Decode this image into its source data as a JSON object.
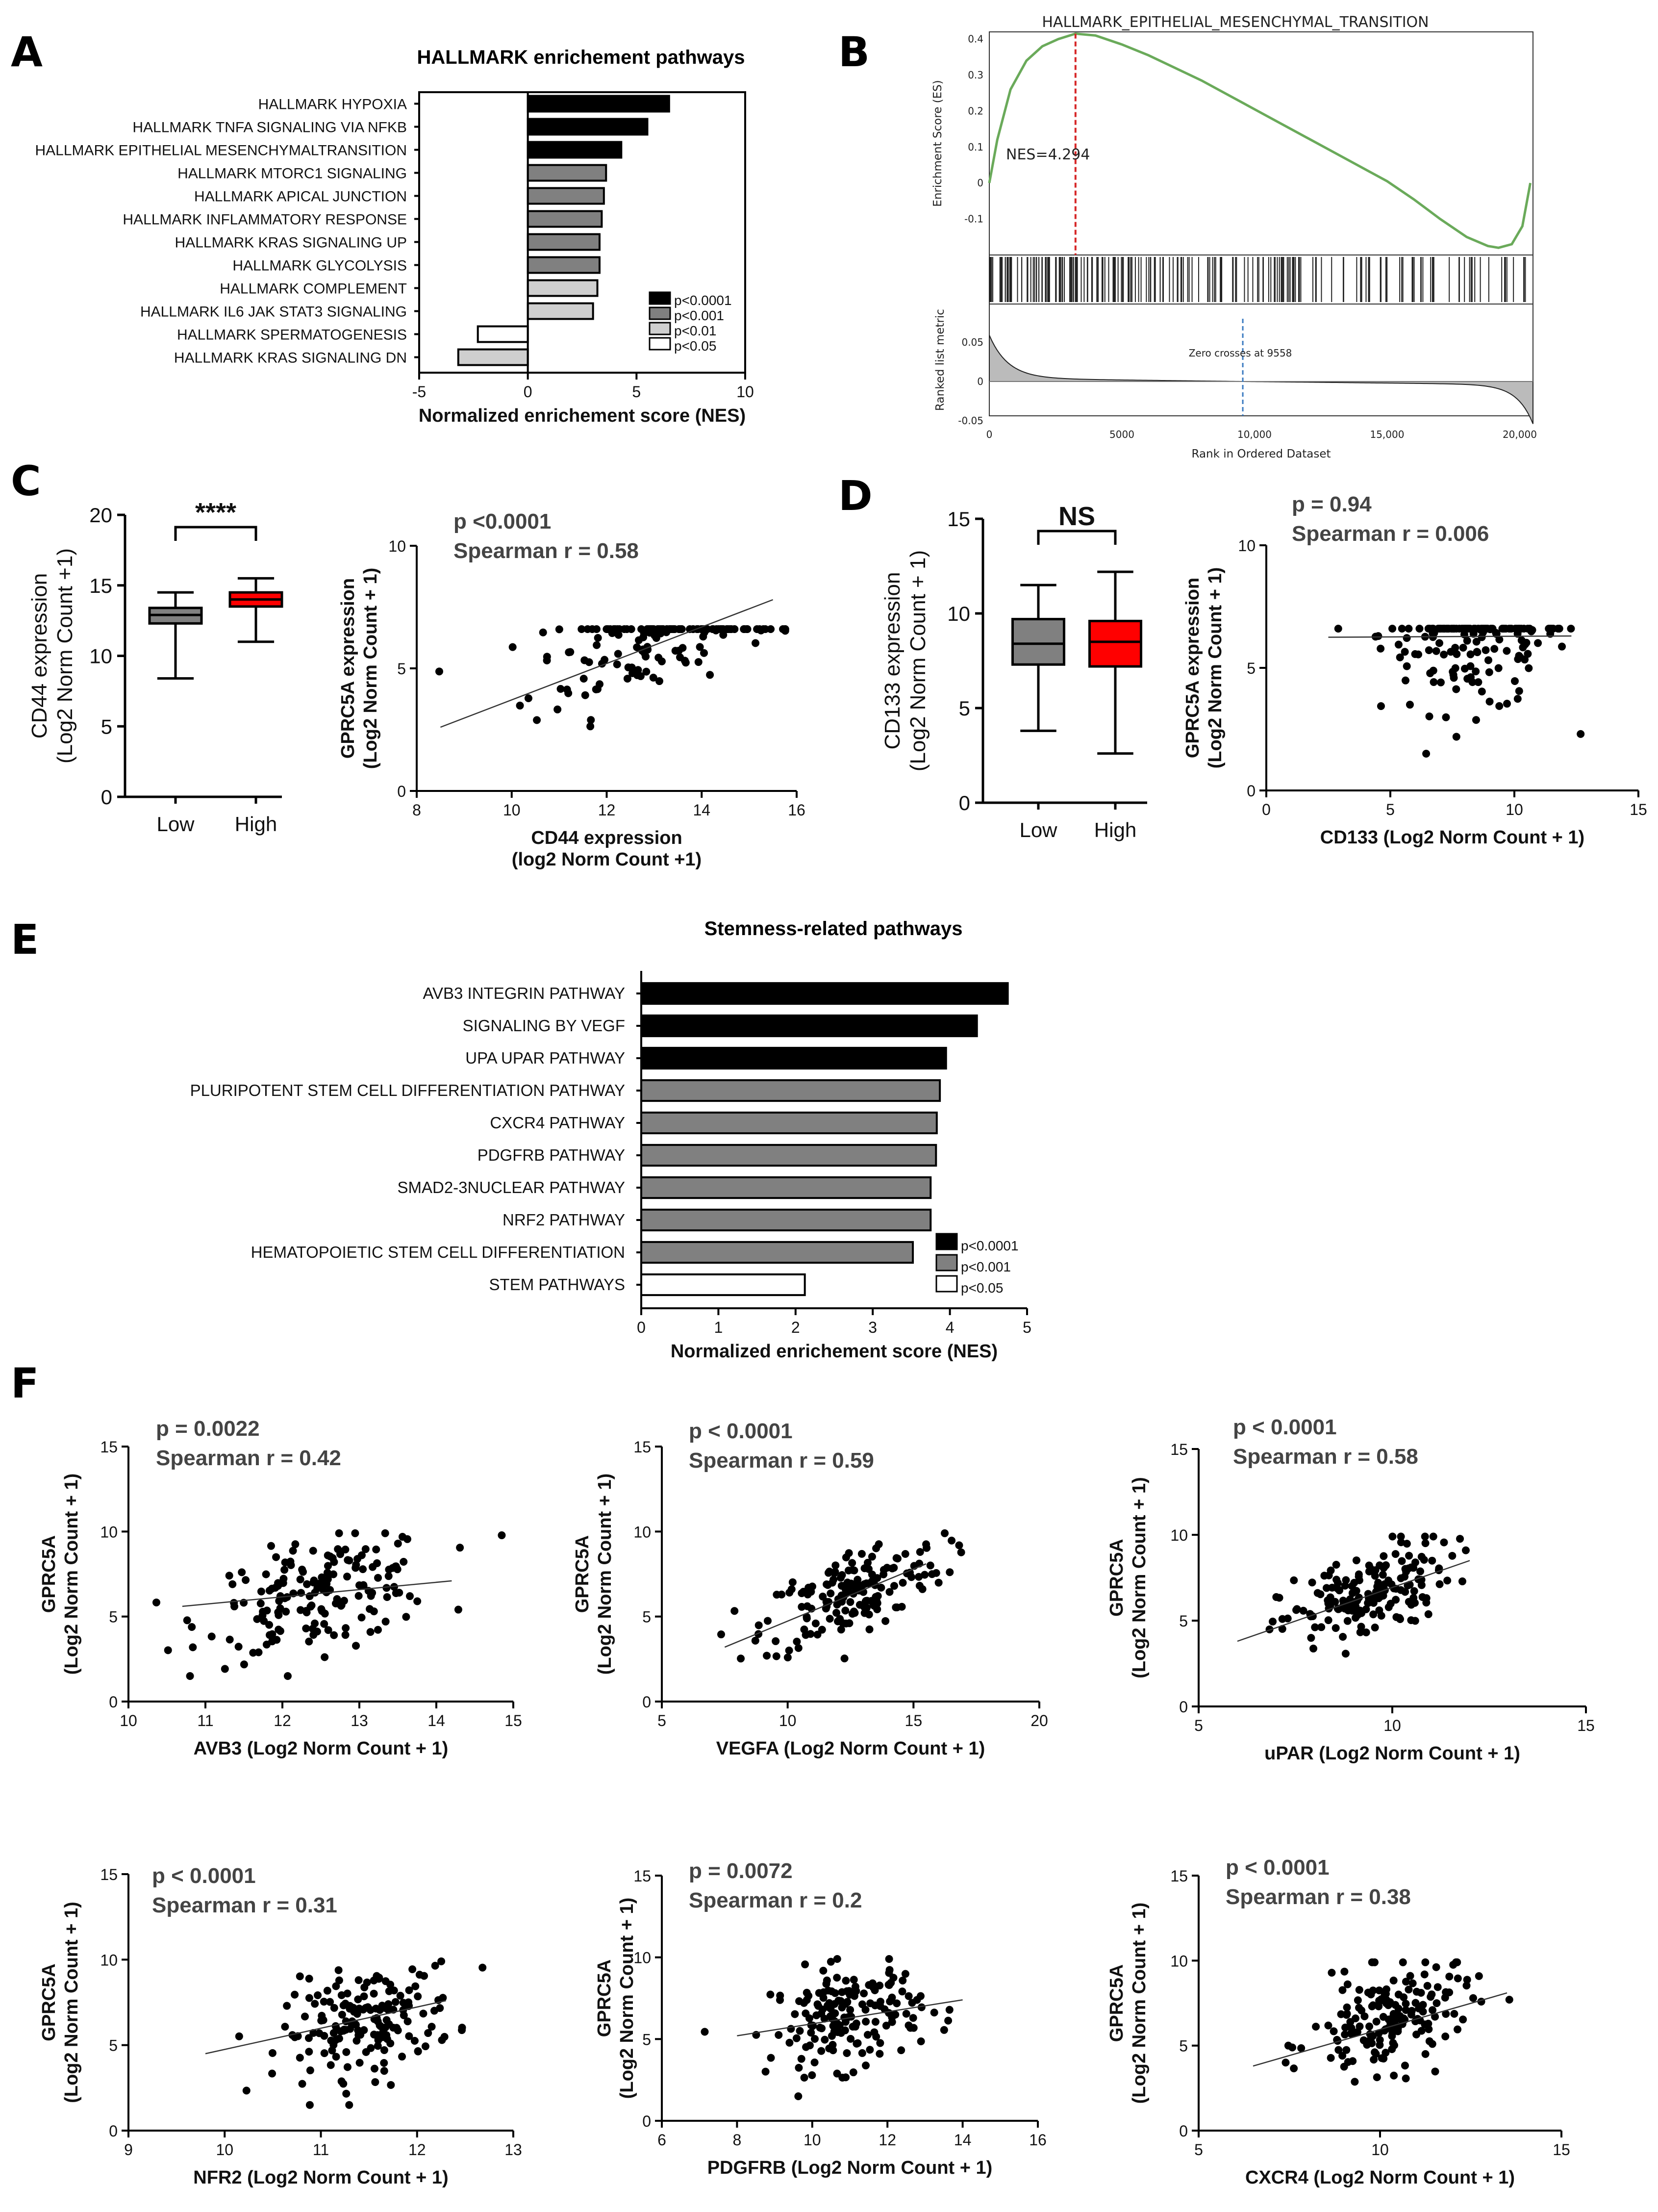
{
  "panels": {
    "A": {
      "letter": "A",
      "chart_data": {
        "type": "bar",
        "orientation": "horizontal",
        "title": "HALLMARK enrichement pathways",
        "xlabel": "Normalized enrichement score (NES)",
        "xlim": [
          -5,
          10
        ],
        "xticks": [
          "-5",
          "0",
          "5",
          "10"
        ],
        "categories": [
          "HALLMARK HYPOXIA",
          "HALLMARK TNFA SIGNALING VIA NFKB",
          "HALLMARK EPITHELIAL MESENCHYMALTRANSITION",
          "HALLMARK MTORC1 SIGNALING",
          "HALLMARK APICAL JUNCTION",
          "HALLMARK INFLAMMATORY RESPONSE",
          "HALLMARK KRAS SIGNALING UP",
          "HALLMARK GLYCOLYSIS",
          "HALLMARK COMPLEMENT",
          "HALLMARK IL6 JAK STAT3 SIGNALING",
          "HALLMARK SPERMATOGENESIS",
          "HALLMARK KRAS SIGNALING DN"
        ],
        "values": [
          6.5,
          5.5,
          4.3,
          3.6,
          3.5,
          3.4,
          3.3,
          3.3,
          3.2,
          3.0,
          -2.3,
          -3.2
        ],
        "significance": [
          "p<0.0001",
          "p<0.0001",
          "p<0.0001",
          "p<0.001",
          "p<0.001",
          "p<0.001",
          "p<0.001",
          "p<0.001",
          "p<0.01",
          "p<0.01",
          "p<0.05",
          "p<0.01"
        ],
        "legend": [
          {
            "label": "p<0.0001",
            "color": "#000000"
          },
          {
            "label": "p<0.001",
            "color": "#808080"
          },
          {
            "label": "p<0.01",
            "color": "#cfcfcf"
          },
          {
            "label": "p<0.05",
            "color": "#ffffff"
          }
        ],
        "legend_position": "bottom-right"
      }
    },
    "B": {
      "letter": "B",
      "chart_data": {
        "type": "line",
        "title": "HALLMARK_EPITHELIAL_MESENCHYMAL_TRANSITION",
        "ylabel_top": "Enrichment Score (ES)",
        "ylabel_bottom": "Ranked list metric",
        "xlabel": "Rank in Ordered Dataset",
        "xlim": [
          0,
          20500
        ],
        "xticks": [
          "0",
          "5000",
          "10,000",
          "15,000",
          "20,000"
        ],
        "ylim_top": [
          -0.2,
          0.42
        ],
        "yticks_top": [
          "0.4",
          "0.3",
          "0.2",
          "0.1",
          "0",
          "-0.1"
        ],
        "yticks_bottom": [
          "0.05",
          "0",
          "-0.05"
        ],
        "nes_label": "NES=4.294",
        "peak_rank": 3250,
        "zero_cross_label": "Zero crosses at 9558",
        "zero_cross_rank": 9558,
        "es_curve": {
          "x": [
            0,
            300,
            800,
            1400,
            2000,
            2600,
            3250,
            4000,
            5000,
            6000,
            7000,
            8000,
            9000,
            10000,
            11000,
            12000,
            13000,
            14000,
            15000,
            16000,
            17000,
            18000,
            18800,
            19200,
            19700,
            20100,
            20400
          ],
          "y": [
            0.0,
            0.12,
            0.26,
            0.34,
            0.38,
            0.4,
            0.415,
            0.41,
            0.385,
            0.355,
            0.32,
            0.285,
            0.245,
            0.205,
            0.165,
            0.125,
            0.085,
            0.045,
            0.005,
            -0.045,
            -0.1,
            -0.15,
            -0.175,
            -0.18,
            -0.17,
            -0.12,
            0.0
          ]
        },
        "series": [
          {
            "values": []
          }
        ]
      }
    },
    "C": {
      "letter": "C",
      "box": {
        "chart_data": {
          "type": "box",
          "ylabel": "CD44 expression\n(Log2 Norm Count +1)",
          "ylim": [
            0,
            20
          ],
          "yticks": [
            "0",
            "5",
            "10",
            "15",
            "20"
          ],
          "categories": [
            "Low",
            "High"
          ],
          "boxes": [
            {
              "min": 8.4,
              "q1": 12.3,
              "median": 12.9,
              "q3": 13.4,
              "max": 14.5,
              "color": "#808080"
            },
            {
              "min": 11.0,
              "q1": 13.5,
              "median": 14.0,
              "q3": 14.5,
              "max": 15.5,
              "color": "#ff0000"
            }
          ],
          "significance": "****"
        }
      },
      "scatter": {
        "chart_data": {
          "type": "scatter",
          "stat_p": "p <0.0001",
          "stat_r": "Spearman r = 0.58",
          "xlabel_1": "CD44 expression",
          "xlabel_2": "(log2 Norm Count +1)",
          "ylabel_1": "GPRC5A expression",
          "ylabel_2": "(Log2 Norm Count + 1)",
          "xlim": [
            8,
            16
          ],
          "ylim": [
            0,
            10
          ],
          "xticks": [
            "8",
            "10",
            "12",
            "14",
            "16"
          ],
          "yticks": [
            "0",
            "5",
            "10"
          ],
          "fit": {
            "x": [
              8.5,
              15.5
            ],
            "y": [
              2.6,
              7.8
            ]
          },
          "n_points": 170,
          "x_mean": 13.0,
          "x_sd": 1.3,
          "y_mean": 6.6,
          "y_sd": 1.6,
          "r": 0.58
        }
      }
    },
    "D": {
      "letter": "D",
      "box": {
        "chart_data": {
          "type": "box",
          "ylabel": "CD133 expression\n(Log2 Norm Count + 1)",
          "ylim": [
            0,
            15
          ],
          "yticks": [
            "0",
            "5",
            "10",
            "15"
          ],
          "categories": [
            "Low",
            "High"
          ],
          "boxes": [
            {
              "min": 3.8,
              "q1": 7.3,
              "median": 8.4,
              "q3": 9.7,
              "max": 11.5,
              "color": "#808080"
            },
            {
              "min": 2.6,
              "q1": 7.2,
              "median": 8.5,
              "q3": 9.6,
              "max": 12.2,
              "color": "#ff0000"
            }
          ],
          "significance": "NS"
        }
      },
      "scatter": {
        "chart_data": {
          "type": "scatter",
          "stat_p": "p = 0.94",
          "stat_r": "Spearman r = 0.006",
          "xlabel_1": "CD133 (Log2 Norm Count + 1)",
          "xlabel_2": "",
          "ylabel_1": "GPRC5A expression",
          "ylabel_2": "(Log2 Norm Count + 1)",
          "xlim": [
            0,
            15
          ],
          "ylim": [
            0,
            10
          ],
          "xticks": [
            "0",
            "5",
            "10",
            "15"
          ],
          "yticks": [
            "0",
            "5",
            "10"
          ],
          "fit": {
            "x": [
              2.5,
              12.3
            ],
            "y": [
              6.25,
              6.3
            ]
          },
          "n_points": 170,
          "x_mean": 8.4,
          "x_sd": 1.9,
          "y_mean": 6.4,
          "y_sd": 1.6,
          "r": 0.0
        }
      }
    },
    "E": {
      "letter": "E",
      "chart_data": {
        "type": "bar",
        "orientation": "horizontal",
        "title": "Stemness-related pathways",
        "xlabel": "Normalized enrichement score (NES)",
        "xlim": [
          0,
          5
        ],
        "xticks": [
          "0",
          "1",
          "2",
          "3",
          "4",
          "5"
        ],
        "categories": [
          "AVB3 INTEGRIN PATHWAY",
          "SIGNALING BY VEGF",
          "UPA UPAR PATHWAY",
          "PLURIPOTENT STEM CELL DIFFERENTIATION PATHWAY",
          "CXCR4 PATHWAY",
          "PDGFRB PATHWAY",
          "SMAD2-3NUCLEAR PATHWAY",
          "NRF2 PATHWAY",
          "HEMATOPOIETIC STEM CELL DIFFERENTIATION",
          "STEM PATHWAYS"
        ],
        "values": [
          4.75,
          4.35,
          3.95,
          3.87,
          3.83,
          3.82,
          3.75,
          3.75,
          3.52,
          2.12
        ],
        "significance": [
          "p<0.0001",
          "p<0.0001",
          "p<0.0001",
          "p<0.001",
          "p<0.001",
          "p<0.001",
          "p<0.001",
          "p<0.001",
          "p<0.001",
          "p<0.05"
        ],
        "legend": [
          {
            "label": "p<0.0001",
            "color": "#000000"
          },
          {
            "label": "p<0.001",
            "color": "#808080"
          },
          {
            "label": "p<0.05",
            "color": "#ffffff"
          }
        ],
        "legend_position": "bottom-right"
      }
    },
    "F": {
      "letter": "F",
      "plots": [
        {
          "stat_p": "p = 0.0022",
          "stat_r": "Spearman r = 0.42",
          "xlabel": "AVB3 (Log2 Norm Count + 1)",
          "ylabel_1": "GPRC5A",
          "ylabel_2": "(Log2 Norm Count + 1)",
          "xlim": [
            10,
            15
          ],
          "ylim": [
            0,
            15
          ],
          "xticks": [
            "10",
            "11",
            "12",
            "13",
            "14",
            "15"
          ],
          "yticks": [
            "0",
            "5",
            "10",
            "15"
          ],
          "fit": {
            "x": [
              10.7,
              14.2
            ],
            "y": [
              5.6,
              7.1
            ]
          },
          "n_points": 170,
          "x_mean": 12.5,
          "x_sd": 0.75,
          "y_mean": 6.3,
          "y_sd": 1.7,
          "r": 0.42
        },
        {
          "stat_p": "p < 0.0001",
          "stat_r": "Spearman r = 0.59",
          "xlabel": "VEGFA (Log2 Norm Count + 1)",
          "ylabel_1": "GPRC5A",
          "ylabel_2": "(Log2 Norm Count + 1)",
          "xlim": [
            5,
            20
          ],
          "ylim": [
            0,
            15
          ],
          "xticks": [
            "5",
            "10",
            "15",
            "20"
          ],
          "yticks": [
            "0",
            "5",
            "10",
            "15"
          ],
          "fit": {
            "x": [
              7.5,
              15.5
            ],
            "y": [
              3.2,
              8.1
            ]
          },
          "n_points": 170,
          "x_mean": 12.6,
          "x_sd": 1.8,
          "y_mean": 6.4,
          "y_sd": 1.6,
          "r": 0.59
        },
        {
          "stat_p": "p < 0.0001",
          "stat_r": "Spearman r = 0.58",
          "xlabel": "uPAR (Log2 Norm Count + 1)",
          "ylabel_1": "GPRC5A",
          "ylabel_2": "(Log2 Norm Count + 1)",
          "xlim": [
            5,
            15
          ],
          "ylim": [
            0,
            15
          ],
          "xticks": [
            "5",
            "10",
            "15"
          ],
          "yticks": [
            "0",
            "5",
            "10",
            "15"
          ],
          "fit": {
            "x": [
              6.0,
              12.0
            ],
            "y": [
              3.8,
              8.5
            ]
          },
          "n_points": 170,
          "x_mean": 9.3,
          "x_sd": 1.1,
          "y_mean": 6.4,
          "y_sd": 1.6,
          "r": 0.58
        },
        {
          "stat_p": "p < 0.0001",
          "stat_r": "Spearman r = 0.31",
          "xlabel": "NFR2 (Log2 Norm Count + 1)",
          "ylabel_1": "GPRC5A",
          "ylabel_2": "(Log2 Norm Count + 1)",
          "xlim": [
            9,
            13
          ],
          "ylim": [
            0,
            15
          ],
          "xticks": [
            "9",
            "10",
            "11",
            "12",
            "13"
          ],
          "yticks": [
            "0",
            "5",
            "10",
            "15"
          ],
          "fit": {
            "x": [
              9.8,
              12.3
            ],
            "y": [
              4.5,
              7.6
            ]
          },
          "n_points": 170,
          "x_mean": 11.5,
          "x_sd": 0.45,
          "y_mean": 6.4,
          "y_sd": 1.6,
          "r": 0.31
        },
        {
          "stat_p": "p = 0.0072",
          "stat_r": "Spearman r = 0.2",
          "xlabel": "PDGFRB (Log2 Norm Count + 1)",
          "ylabel_1": "GPRC5A",
          "ylabel_2": "(Log2 Norm Count + 1)",
          "xlim": [
            6,
            16
          ],
          "ylim": [
            0,
            15
          ],
          "xticks": [
            "6",
            "8",
            "10",
            "12",
            "14",
            "16"
          ],
          "yticks": [
            "0",
            "5",
            "10",
            "15"
          ],
          "fit": {
            "x": [
              8.0,
              14.0
            ],
            "y": [
              5.2,
              7.4
            ]
          },
          "n_points": 170,
          "x_mean": 10.9,
          "x_sd": 1.0,
          "y_mean": 6.4,
          "y_sd": 1.6,
          "r": 0.2
        },
        {
          "stat_p": "p < 0.0001",
          "stat_r": "Spearman r = 0.38",
          "xlabel": "CXCR4  (Log2 Norm Count + 1)",
          "ylabel_1": "GPRC5A",
          "ylabel_2": "(Log2 Norm Count + 1)",
          "xlim": [
            5,
            15
          ],
          "ylim": [
            0,
            15
          ],
          "xticks": [
            "5",
            "10",
            "15"
          ],
          "yticks": [
            "0",
            "5",
            "10",
            "15"
          ],
          "fit": {
            "x": [
              6.5,
              13.5
            ],
            "y": [
              3.8,
              8.1
            ]
          },
          "n_points": 170,
          "x_mean": 10.3,
          "x_sd": 1.1,
          "y_mean": 6.5,
          "y_sd": 1.6,
          "r": 0.38
        }
      ]
    }
  }
}
